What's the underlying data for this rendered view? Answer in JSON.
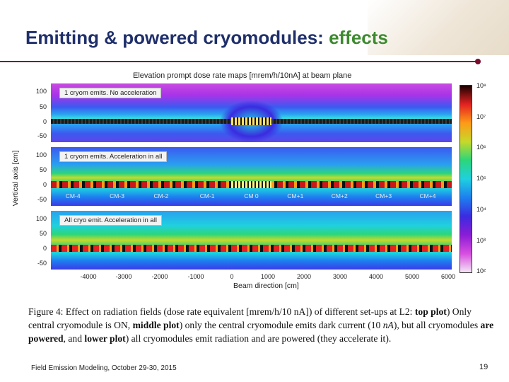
{
  "slide": {
    "title_main": "Emitting & powered cryomodules: ",
    "title_highlight": "effects",
    "footer": "Field Emission Modeling, October 29-30, 2015",
    "page_number": "19"
  },
  "figure": {
    "title": "Elevation prompt dose rate maps [mrem/h/10nA] at beam plane",
    "panels": [
      {
        "label": "1 cryom emits. No acceleration"
      },
      {
        "label": "1 cryom emits. Acceleration in all"
      },
      {
        "label": "All cryo emit. Acceleration in all"
      }
    ],
    "cm_labels": [
      "CM-4",
      "CM-3",
      "CM-2",
      "CM-1",
      "CM 0",
      "CM+1",
      "CM+2",
      "CM+3",
      "CM+4"
    ],
    "y_ticks": [
      "100",
      "50",
      "0",
      "-50"
    ],
    "x_ticks": [
      "-4000",
      "-3000",
      "-2000",
      "-1000",
      "0",
      "1000",
      "2000",
      "3000",
      "4000",
      "5000",
      "6000"
    ],
    "y_axis_label": "Vertical axis [cm]",
    "x_axis_label": "Beam direction [cm]",
    "colorbar_ticks": [
      "10⁸",
      "10⁷",
      "10⁶",
      "10⁵",
      "10⁴",
      "10³",
      "10²"
    ],
    "colors": {
      "title": "#1f2f6b",
      "highlight": "#3d8a2f",
      "rule": "#7a0d2e"
    }
  },
  "caption": {
    "fig_no": "Figure 4:",
    "t1": " Effect on radiation fields (dose rate equivalent [mrem/h/10 nA]) of different set-ups at L2: ",
    "top": "top plot",
    "t2": ") Only central cryomodule is ON, ",
    "middle": "middle plot",
    "t3": ") only the central cryomodule emits dark current (10 ",
    "nA": "nA",
    "t4": "), but all cryomodules ",
    "are_powered": "are powered",
    "t5": ", and ",
    "lower": "lower plot",
    "t6": ") all cryomodules emit radiation and are powered (they accelerate it)."
  }
}
